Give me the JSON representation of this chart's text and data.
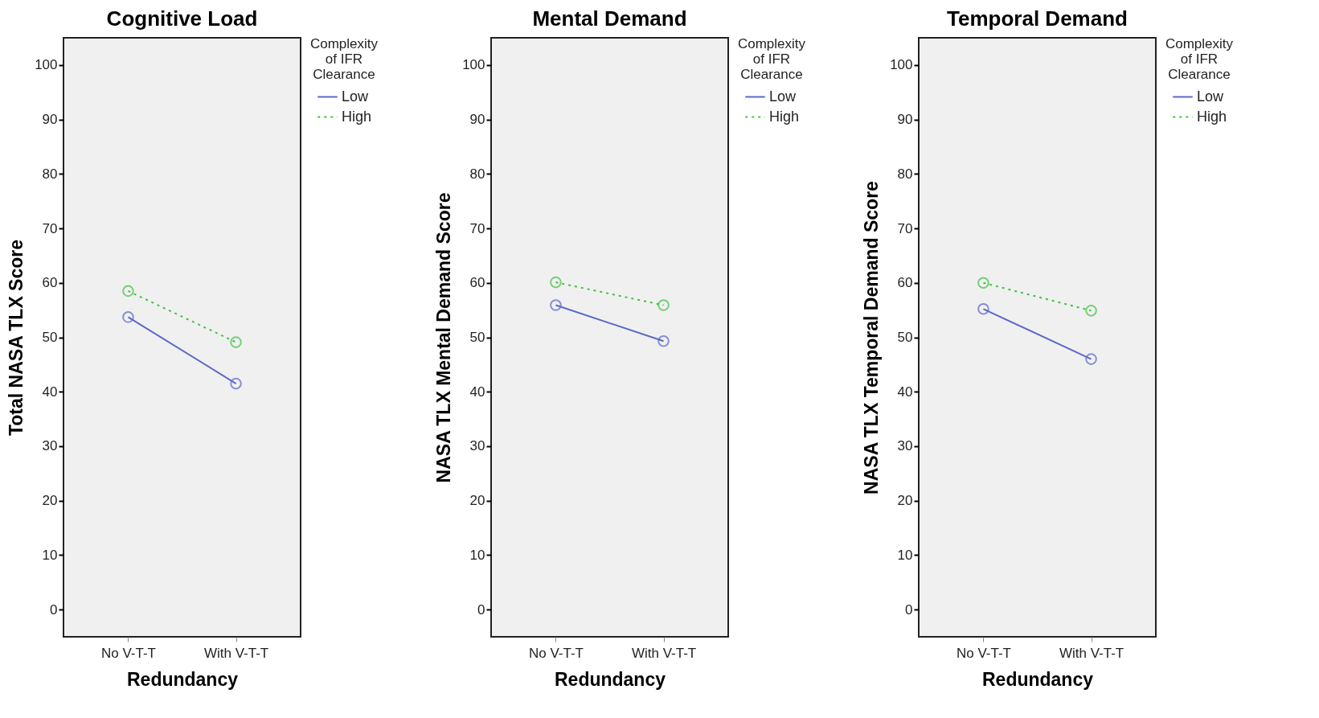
{
  "chart_data": [
    {
      "type": "line",
      "title": "Cognitive Load",
      "xlabel": "Redundancy",
      "ylabel": "Total NASA TLX Score",
      "legend_title": "Complexity of IFR Clearance",
      "categories": [
        "No V-T-T",
        "With V-T-T"
      ],
      "series": [
        {
          "name": "Low",
          "color": "#5b68c8",
          "line_style": "solid",
          "values": [
            53.7,
            41.5
          ]
        },
        {
          "name": "High",
          "color": "#44c044",
          "line_style": "dotted",
          "values": [
            58.5,
            49.1
          ]
        }
      ],
      "ylim": [
        -5,
        105
      ],
      "yticks": [
        0,
        10,
        20,
        30,
        40,
        50,
        60,
        70,
        80,
        90,
        100
      ],
      "grid": false,
      "legend": "right",
      "marker": "circle"
    },
    {
      "type": "line",
      "title": "Mental Demand",
      "xlabel": "Redundancy",
      "ylabel": "NASA TLX Mental Demand Score",
      "legend_title": "Complexity of IFR Clearance",
      "categories": [
        "No V-T-T",
        "With V-T-T"
      ],
      "series": [
        {
          "name": "Low",
          "color": "#5b68c8",
          "line_style": "solid",
          "values": [
            55.9,
            49.3
          ]
        },
        {
          "name": "High",
          "color": "#44c044",
          "line_style": "dotted",
          "values": [
            60.1,
            55.9
          ]
        }
      ],
      "ylim": [
        -5,
        105
      ],
      "yticks": [
        0,
        10,
        20,
        30,
        40,
        50,
        60,
        70,
        80,
        90,
        100
      ],
      "grid": false,
      "legend": "right",
      "marker": "circle"
    },
    {
      "type": "line",
      "title": "Temporal Demand",
      "xlabel": "Redundancy",
      "ylabel": "NASA TLX Temporal Demand Score",
      "legend_title": "Complexity of IFR Clearance",
      "categories": [
        "No V-T-T",
        "With V-T-T"
      ],
      "series": [
        {
          "name": "Low",
          "color": "#5b68c8",
          "line_style": "solid",
          "values": [
            55.2,
            46.0
          ]
        },
        {
          "name": "High",
          "color": "#44c044",
          "line_style": "dotted",
          "values": [
            60.0,
            54.9
          ]
        }
      ],
      "ylim": [
        -5,
        105
      ],
      "yticks": [
        0,
        10,
        20,
        30,
        40,
        50,
        60,
        70,
        80,
        90,
        100
      ],
      "grid": false,
      "legend": "right",
      "marker": "circle"
    }
  ]
}
